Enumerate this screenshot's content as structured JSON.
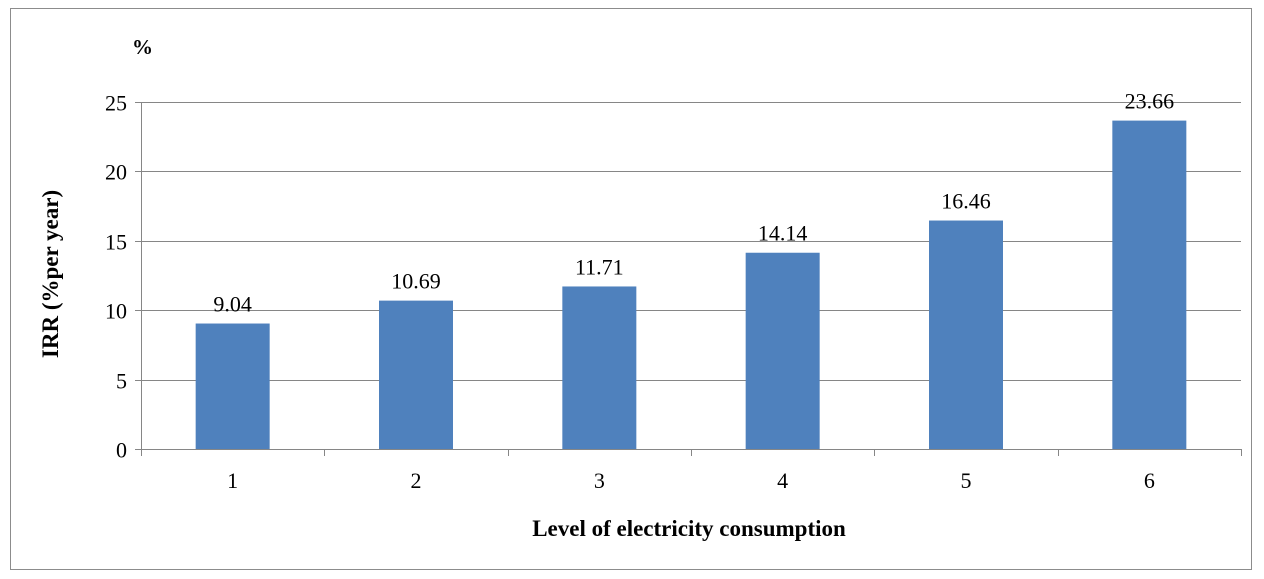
{
  "chart_data": {
    "type": "bar",
    "categories": [
      "1",
      "2",
      "3",
      "4",
      "5",
      "6"
    ],
    "values": [
      9.04,
      10.69,
      11.71,
      14.14,
      16.46,
      23.66
    ],
    "data_labels": [
      "9.04",
      "10.69",
      "11.71",
      "14.14",
      "16.46",
      "23.66"
    ],
    "title": "",
    "xlabel": "Level of electricity consumption",
    "ylabel": "IRR (%per year)",
    "unit_label": "%",
    "ylim": [
      0,
      25
    ],
    "yticks": [
      0,
      5,
      10,
      15,
      20,
      25
    ],
    "ytick_labels": [
      "0",
      "5",
      "10",
      "15",
      "20",
      "25"
    ],
    "grid": true,
    "legend": "none",
    "colors": {
      "bar": "#4f81bd",
      "grid": "#868686",
      "axis": "#868686",
      "text": "#000000"
    }
  }
}
